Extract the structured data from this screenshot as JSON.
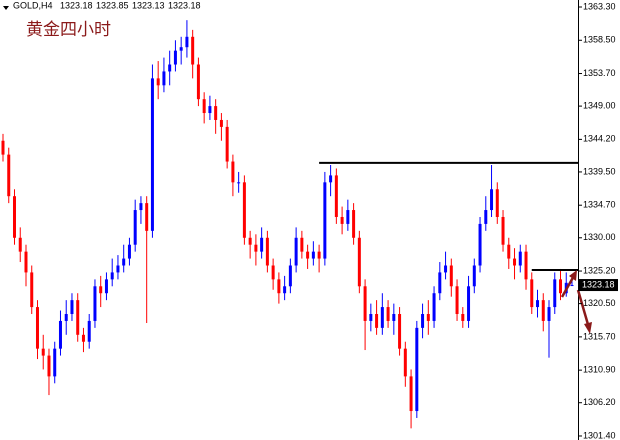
{
  "chart_data": {
    "type": "candlestick",
    "title": "黄金四小时",
    "symbol": "GOLD,H4",
    "up_color": "#0000ff",
    "down_color": "#ff0000",
    "level_color": "#000000",
    "ylim": [
      1300.82,
      1364.31
    ],
    "yticks": [
      {
        "value": 1363.3,
        "label": "1363.30"
      },
      {
        "value": 1358.5,
        "label": "1358.50"
      },
      {
        "value": 1353.7,
        "label": "1353.70"
      },
      {
        "value": 1349.0,
        "label": "1349.00"
      },
      {
        "value": 1344.2,
        "label": "1344.20"
      },
      {
        "value": 1339.5,
        "label": "1339.50"
      },
      {
        "value": 1334.7,
        "label": "1334.70"
      },
      {
        "value": 1330.0,
        "label": "1330.00"
      },
      {
        "value": 1325.2,
        "label": "1325.20"
      },
      {
        "value": 1320.5,
        "label": "1320.50"
      },
      {
        "value": 1315.7,
        "label": "1315.70"
      },
      {
        "value": 1310.9,
        "label": "1310.90"
      },
      {
        "value": 1306.2,
        "label": "1306.20"
      },
      {
        "value": 1301.4,
        "label": "1301.40"
      }
    ],
    "open": [
      1344,
      1342,
      1336,
      1330,
      1328,
      1325,
      1320,
      1314,
      1313,
      1310,
      1314,
      1318,
      1319,
      1321,
      1316,
      1315,
      1318,
      1323,
      1322,
      1324,
      1325,
      1326,
      1327,
      1329,
      1334,
      1335,
      1331,
      1353,
      1352,
      1354,
      1355,
      1357,
      1357.5,
      1359,
      1355,
      1350,
      1348,
      1349,
      1347,
      1346,
      1341,
      1338,
      1338,
      1330,
      1329,
      1328,
      1330,
      1326,
      1324,
      1322,
      1323,
      1326,
      1330,
      1328,
      1327,
      1328,
      1327,
      1338,
      1339,
      1333,
      1332,
      1334,
      1330,
      1323,
      1318,
      1319,
      1317,
      1320,
      1318,
      1319,
      1314,
      1310,
      1305,
      1317,
      1319,
      1318,
      1322,
      1325,
      1326,
      1323,
      1319,
      1318,
      1323,
      1326,
      1332,
      1334,
      1337,
      1333,
      1329,
      1327,
      1326,
      1328,
      1324,
      1320,
      1321,
      1318,
      1320,
      1324,
      1322,
      1323.18
    ],
    "high": [
      1345,
      1343,
      1337,
      1331.5,
      1329,
      1326,
      1321,
      1316,
      1314,
      1315,
      1319.5,
      1321,
      1322,
      1322,
      1317,
      1319,
      1324,
      1324.5,
      1325,
      1327,
      1327.5,
      1329,
      1330,
      1335.5,
      1336,
      1336,
      1355,
      1355.5,
      1356,
      1357,
      1358.5,
      1359,
      1361.4,
      1360,
      1356,
      1351,
      1350.5,
      1350,
      1348,
      1347,
      1342,
      1339.5,
      1339,
      1331,
      1330.5,
      1331.5,
      1331,
      1327,
      1325,
      1324.5,
      1327,
      1331.5,
      1331,
      1329,
      1329.5,
      1329,
      1339.5,
      1340.5,
      1340,
      1334.5,
      1335.5,
      1335,
      1331,
      1324,
      1320.5,
      1321,
      1322,
      1321,
      1320.5,
      1320,
      1315,
      1311,
      1318,
      1320.5,
      1321,
      1323,
      1326.5,
      1328,
      1327,
      1324,
      1320,
      1324.5,
      1327,
      1333,
      1336,
      1340.5,
      1338,
      1334,
      1330,
      1328.5,
      1329,
      1329,
      1325,
      1322.5,
      1322,
      1321,
      1325,
      1325.5,
      1325,
      1323.85
    ],
    "low": [
      1341,
      1335,
      1329,
      1326.5,
      1323,
      1319,
      1312.5,
      1311,
      1307.3,
      1309,
      1313,
      1316,
      1318,
      1315,
      1313.5,
      1314,
      1317,
      1320,
      1321,
      1323,
      1324,
      1325,
      1326,
      1328,
      1332,
      1317.7,
      1330,
      1350,
      1351,
      1352,
      1354,
      1355,
      1356,
      1353,
      1349,
      1346.5,
      1347,
      1345,
      1344,
      1340,
      1336,
      1336.5,
      1329,
      1327,
      1326,
      1327,
      1325,
      1322.5,
      1320.5,
      1321,
      1322,
      1325,
      1327,
      1325.5,
      1326,
      1325,
      1326,
      1336,
      1332,
      1330.5,
      1331,
      1329,
      1322,
      1313.8,
      1316.5,
      1316,
      1316,
      1317,
      1316,
      1313,
      1308.5,
      1302.5,
      1304,
      1315.5,
      1316,
      1317,
      1321,
      1324,
      1321.5,
      1318,
      1317,
      1317,
      1322,
      1325,
      1331,
      1333,
      1332,
      1328,
      1325.5,
      1324,
      1325,
      1322.5,
      1319,
      1318.5,
      1316.5,
      1312.7,
      1319,
      1321,
      1321.5,
      1323.13
    ],
    "close": [
      1342,
      1336,
      1330,
      1328,
      1325,
      1320,
      1314,
      1313,
      1310,
      1314,
      1318,
      1319,
      1321,
      1316,
      1315,
      1318,
      1323,
      1322,
      1324,
      1325,
      1326,
      1327,
      1329,
      1334,
      1335,
      1331,
      1353,
      1352,
      1354,
      1355,
      1357,
      1357.5,
      1359,
      1355,
      1350,
      1348,
      1349,
      1347,
      1346,
      1341,
      1338,
      1338,
      1330,
      1329,
      1328,
      1330,
      1326,
      1324,
      1322,
      1323,
      1326,
      1330,
      1328,
      1327,
      1328,
      1327,
      1338,
      1339,
      1333,
      1332,
      1334,
      1330,
      1323,
      1318,
      1319,
      1317,
      1320,
      1318,
      1319,
      1314,
      1310,
      1305,
      1317,
      1319,
      1318,
      1322,
      1325,
      1326,
      1323,
      1319,
      1318,
      1323,
      1326,
      1332,
      1334,
      1337,
      1333,
      1329,
      1327,
      1326,
      1328,
      1324,
      1320,
      1321,
      1318,
      1320,
      1324,
      1322,
      1323.5,
      1323.18
    ],
    "levels": [
      {
        "price": 1340.8,
        "from": 55
      },
      {
        "price": 1325.35,
        "from": 92
      }
    ]
  }
}
